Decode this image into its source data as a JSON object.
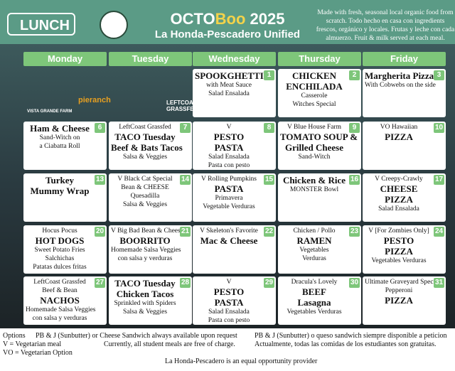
{
  "header": {
    "badge": "LUNCH",
    "title_parts": [
      "OCTO",
      "Boo",
      "2025"
    ],
    "subtitle": "La Honda-Pescadero Unified",
    "blurb": "Made with fresh, seasonal local organic food from scratch. Todo hecho en casa con ingredients frescos, orgánico y locales. Frutas y leche con cada almuerzo. Fruit & milk served at each meal."
  },
  "days": [
    "Monday",
    "Tuesday",
    "Wednesday",
    "Thursday",
    "Friday"
  ],
  "sponsors": [
    "pieranch",
    "LEFTCOAST GRASSFED",
    "VISTA GRANDE FARM"
  ],
  "weeks": [
    [
      null,
      null,
      {
        "day": "1",
        "lines": [
          "SPOOKGHETTI",
          "with Meat Sauce",
          "Salad Ensalada"
        ]
      },
      {
        "day": "2",
        "lines": [
          "CHICKEN",
          "ENCHILADA",
          "Casserole",
          "Witches Special"
        ]
      },
      {
        "day": "3",
        "lines": [
          "Margherita Pizza",
          "With Cobwebs on the side"
        ]
      }
    ],
    [
      {
        "day": "6",
        "lines": [
          "Ham & Cheese",
          "Sand-Witch on",
          "a Ciabatta Roll"
        ]
      },
      {
        "day": "7",
        "lines": [
          "LeftCoast Grassfed",
          "TACO Tuesday",
          "Beef & Bats Tacos",
          "Salsa & Veggies"
        ]
      },
      {
        "day": "8",
        "lines": [
          "V",
          "PESTO",
          "PASTA",
          "Salad Ensalada",
          "Pasta con pesto"
        ]
      },
      {
        "day": "9",
        "lines": [
          "V Blue House Farm",
          "TOMATO SOUP &",
          "Grilled Cheese",
          "Sand-Witch"
        ]
      },
      {
        "day": "10",
        "lines": [
          "VO Hawaiian",
          "PIZZA"
        ]
      }
    ],
    [
      {
        "day": "13",
        "lines": [
          "Turkey",
          "Mummy Wrap"
        ]
      },
      {
        "day": "14",
        "lines": [
          "V Black Cat Special",
          "Bean & CHEESE",
          "Quesadilla",
          "Salsa & Veggies"
        ]
      },
      {
        "day": "15",
        "lines": [
          "V Rolling Pumpkins",
          "PASTA",
          "Primavera",
          "Vegetable Verduras"
        ]
      },
      {
        "day": "16",
        "lines": [
          "Chicken & Rice",
          "MONSTER Bowl"
        ]
      },
      {
        "day": "17",
        "lines": [
          "V Creepy-Crawly",
          "CHEESE",
          "PIZZA",
          "Salad Ensalada"
        ]
      }
    ],
    [
      {
        "day": "20",
        "lines": [
          "Hocus Pocus",
          "HOT DOGS",
          "Sweet Potato Fries",
          "Salchichas",
          "Patatas dulces fritas"
        ]
      },
      {
        "day": "21",
        "lines": [
          "V Big Bad Bean & Cheese",
          "BOORRITO",
          "Homemade Salsa Veggies",
          "con salsa y verduras"
        ]
      },
      {
        "day": "22",
        "lines": [
          "V Skeleton's Favorite",
          "Mac & Cheese"
        ]
      },
      {
        "day": "23",
        "lines": [
          "Chicken / Pollo",
          "RAMEN",
          "Vegetables",
          "Verduras"
        ]
      },
      {
        "day": "24",
        "lines": [
          "V [For Zombies Only]",
          "PESTO",
          "PIZZA",
          "Vegetables Verduras"
        ]
      }
    ],
    [
      {
        "day": "27",
        "lines": [
          "LeftCoast Grassfed",
          "Beef & Bean",
          "NACHOS",
          "Homemade Salsa Veggies",
          "con salsa y verduras"
        ]
      },
      {
        "day": "28",
        "lines": [
          "TACO Tuesday",
          "Chicken Tacos",
          "Sprinkled with Spiders",
          "Salsa & Veggies"
        ]
      },
      {
        "day": "29",
        "lines": [
          "V",
          "PESTO",
          "PASTA",
          "Salad Ensalada",
          "Pasta con pesto"
        ]
      },
      {
        "day": "30",
        "lines": [
          "Dracula's Lovely",
          "BEEF",
          "Lasagna",
          "Vegetables Verduras"
        ]
      },
      {
        "day": "31",
        "lines": [
          "Ultimate Graveyard Special",
          "Pepperoni",
          "PIZZA"
        ]
      }
    ]
  ],
  "footer": {
    "options": "Options",
    "always_en": "PB & J (Sunbutter) or Cheese Sandwich always available upon request",
    "always_es": "PB & J (Sunbutter) o queso sandwich siempre disponible a peticion",
    "v": "V = Vegetarian meal",
    "free_en": "Currently, all student meals are free of charge.",
    "free_es": "Actualmente, todas las comidas de los estudiantes son gratuitas.",
    "vo": "VO = Vegetarian Option",
    "equal": "La Honda-Pescadero is an equal opportunity provider"
  }
}
